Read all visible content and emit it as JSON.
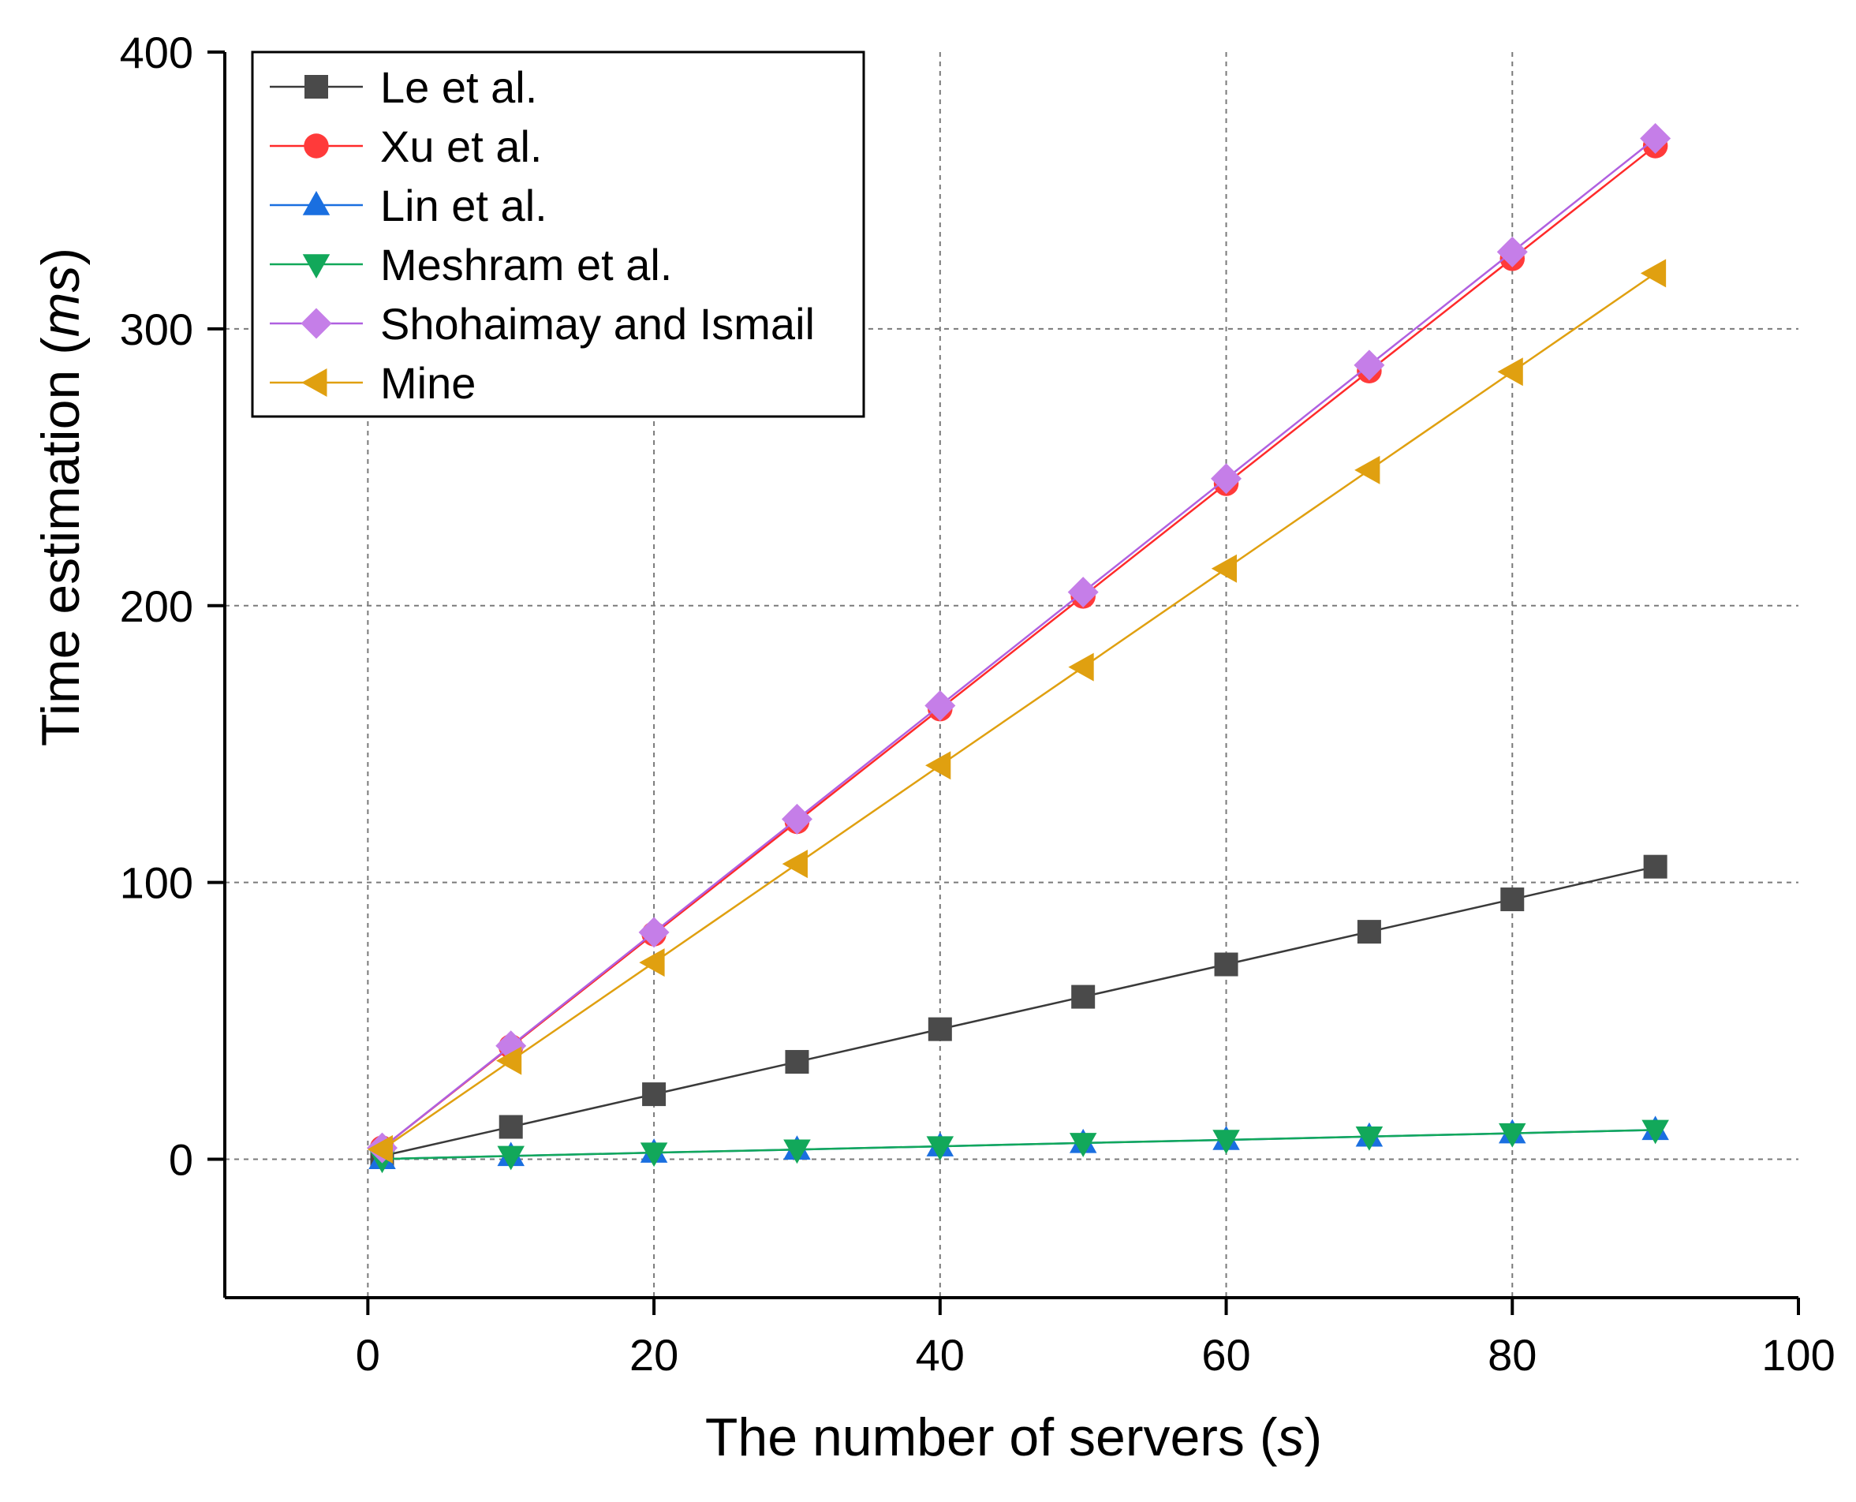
{
  "chart_data": {
    "type": "line",
    "xlabel_prefix": "The number of servers (",
    "xlabel_var": "s",
    "xlabel_suffix": ")",
    "ylabel_prefix": "Time estimation (",
    "ylabel_var": "ms",
    "ylabel_suffix": ")",
    "xlim": [
      -10,
      100
    ],
    "ylim": [
      -50,
      400
    ],
    "xticks": [
      0,
      20,
      40,
      60,
      80,
      100
    ],
    "yticks": [
      0,
      100,
      200,
      300,
      400
    ],
    "grid": true,
    "legend_position": "top-left",
    "x": [
      1,
      10,
      20,
      30,
      40,
      50,
      60,
      70,
      80,
      90
    ],
    "series": [
      {
        "name": "Le et al.",
        "marker": "square",
        "color": "#4a4a4a",
        "line_color": "#3a3a3a",
        "values": [
          1.2,
          11.7,
          23.5,
          35.2,
          47.0,
          58.7,
          70.4,
          82.2,
          93.9,
          105.7
        ]
      },
      {
        "name": "Xu et al.",
        "marker": "circle",
        "color": "#ff3a3a",
        "line_color": "#ff2a2a",
        "values": [
          4.1,
          40.7,
          81.4,
          122.0,
          162.7,
          203.4,
          244.1,
          284.8,
          325.4,
          366.1
        ]
      },
      {
        "name": "Lin et al.",
        "marker": "triangle-up",
        "color": "#1a6fe0",
        "line_color": "#1a6fe0",
        "values": [
          0.1,
          1.2,
          2.4,
          3.5,
          4.7,
          5.9,
          7.0,
          8.2,
          9.4,
          10.6
        ]
      },
      {
        "name": "Meshram et al.",
        "marker": "triangle-down",
        "color": "#12a85a",
        "line_color": "#12a85a",
        "values": [
          0.1,
          1.2,
          2.4,
          3.5,
          4.7,
          5.9,
          7.0,
          8.2,
          9.4,
          10.6
        ]
      },
      {
        "name": "Shohaimay and Ismail",
        "marker": "diamond",
        "color": "#c57ee8",
        "line_color": "#b060e0",
        "values": [
          4.1,
          41.0,
          82.0,
          122.9,
          163.9,
          204.9,
          245.9,
          286.9,
          327.8,
          368.8
        ]
      },
      {
        "name": "Mine",
        "marker": "triangle-left",
        "color": "#e0a010",
        "line_color": "#e0a010",
        "values": [
          3.6,
          35.6,
          71.1,
          106.7,
          142.3,
          177.8,
          213.4,
          249.0,
          284.5,
          320.1
        ]
      }
    ]
  }
}
